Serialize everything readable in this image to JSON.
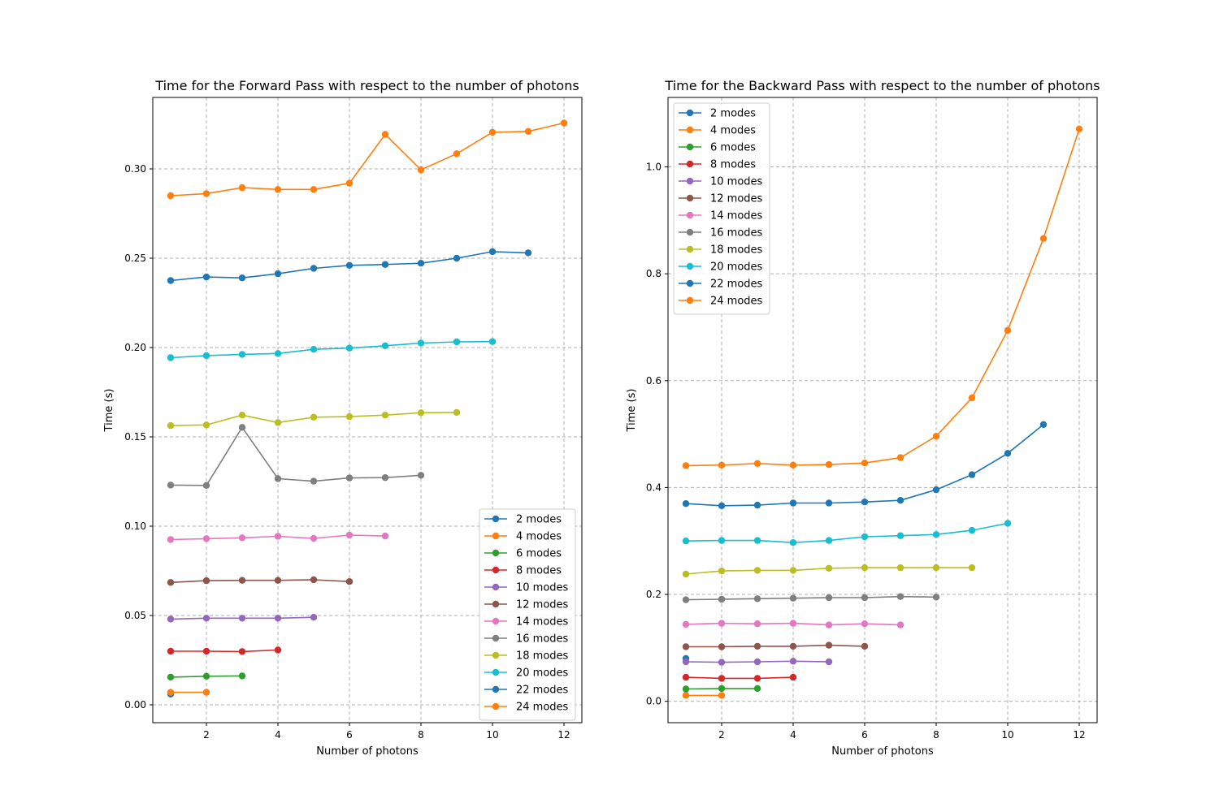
{
  "chart_data": [
    {
      "type": "line",
      "title": "Time for the Forward Pass with respect to the number of photons",
      "xlabel": "Number of photons",
      "ylabel": "Time (s)",
      "xlim": [
        0.5,
        12.5
      ],
      "ylim": [
        -0.01,
        0.34
      ],
      "xticks": [
        2,
        4,
        6,
        8,
        10,
        12
      ],
      "yticks": [
        0.0,
        0.05,
        0.1,
        0.15,
        0.2,
        0.25,
        0.3
      ],
      "ytick_labels": [
        "0.00",
        "0.05",
        "0.10",
        "0.15",
        "0.20",
        "0.25",
        "0.30"
      ],
      "grid": true,
      "legend_position": "lower-right",
      "series": [
        {
          "name": "2 modes",
          "color": "#1f77b4",
          "x": [
            1
          ],
          "y": [
            0.006
          ]
        },
        {
          "name": "4 modes",
          "color": "#ff7f0e",
          "x": [
            1,
            2
          ],
          "y": [
            0.007,
            0.007
          ]
        },
        {
          "name": "6 modes",
          "color": "#2ca02c",
          "x": [
            1,
            2,
            3
          ],
          "y": [
            0.0155,
            0.016,
            0.0162
          ]
        },
        {
          "name": "8 modes",
          "color": "#d62728",
          "x": [
            1,
            2,
            3,
            4
          ],
          "y": [
            0.03,
            0.03,
            0.0298,
            0.0307
          ]
        },
        {
          "name": "10 modes",
          "color": "#9467bd",
          "x": [
            1,
            2,
            3,
            4,
            5
          ],
          "y": [
            0.048,
            0.0485,
            0.0485,
            0.0485,
            0.049
          ]
        },
        {
          "name": "12 modes",
          "color": "#8c564b",
          "x": [
            1,
            2,
            3,
            4,
            5,
            6
          ],
          "y": [
            0.0685,
            0.0695,
            0.0697,
            0.0697,
            0.07,
            0.069
          ]
        },
        {
          "name": "14 modes",
          "color": "#e377c2",
          "x": [
            1,
            2,
            3,
            4,
            5,
            6,
            7
          ],
          "y": [
            0.0925,
            0.093,
            0.0935,
            0.0943,
            0.0932,
            0.095,
            0.0945
          ]
        },
        {
          "name": "16 modes",
          "color": "#7f7f7f",
          "x": [
            1,
            2,
            3,
            4,
            5,
            6,
            7,
            8
          ],
          "y": [
            0.123,
            0.1228,
            0.1553,
            0.1266,
            0.1252,
            0.127,
            0.1272,
            0.1285
          ]
        },
        {
          "name": "18 modes",
          "color": "#bcbd22",
          "x": [
            1,
            2,
            3,
            4,
            5,
            6,
            7,
            8,
            9
          ],
          "y": [
            0.1563,
            0.1567,
            0.1622,
            0.158,
            0.161,
            0.1613,
            0.1622,
            0.1635,
            0.1637
          ]
        },
        {
          "name": "20 modes",
          "color": "#17becf",
          "x": [
            1,
            2,
            3,
            4,
            5,
            6,
            7,
            8,
            9,
            10
          ],
          "y": [
            0.1943,
            0.1955,
            0.1962,
            0.1967,
            0.199,
            0.1997,
            0.201,
            0.2025,
            0.2032,
            0.2033
          ]
        },
        {
          "name": "22 modes",
          "color": "#1f77b4",
          "x": [
            1,
            2,
            3,
            4,
            5,
            6,
            7,
            8,
            9,
            10,
            11
          ],
          "y": [
            0.2375,
            0.2395,
            0.239,
            0.2413,
            0.2443,
            0.246,
            0.2465,
            0.2472,
            0.25,
            0.2537,
            0.253
          ]
        },
        {
          "name": "24 modes",
          "color": "#ff7f0e",
          "x": [
            1,
            2,
            3,
            4,
            5,
            6,
            7,
            8,
            9,
            10,
            11,
            12
          ],
          "y": [
            0.285,
            0.2862,
            0.2895,
            0.2885,
            0.2885,
            0.292,
            0.3193,
            0.2995,
            0.3085,
            0.3205,
            0.321,
            0.3257
          ]
        }
      ]
    },
    {
      "type": "line",
      "title": "Time for the Backward Pass with respect to the number of photons",
      "xlabel": "Number of photons",
      "ylabel": "Time (s)",
      "xlim": [
        0.5,
        12.5
      ],
      "ylim": [
        -0.04,
        1.13
      ],
      "xticks": [
        2,
        4,
        6,
        8,
        10,
        12
      ],
      "yticks": [
        0.0,
        0.2,
        0.4,
        0.6,
        0.8,
        1.0
      ],
      "ytick_labels": [
        "0.0",
        "0.2",
        "0.4",
        "0.6",
        "0.8",
        "1.0"
      ],
      "grid": true,
      "legend_position": "upper-left",
      "series": [
        {
          "name": "2 modes",
          "color": "#1f77b4",
          "x": [
            1
          ],
          "y": [
            0.08
          ]
        },
        {
          "name": "4 modes",
          "color": "#ff7f0e",
          "x": [
            1,
            2
          ],
          "y": [
            0.011,
            0.011
          ]
        },
        {
          "name": "6 modes",
          "color": "#2ca02c",
          "x": [
            1,
            2,
            3
          ],
          "y": [
            0.023,
            0.024,
            0.024
          ]
        },
        {
          "name": "8 modes",
          "color": "#d62728",
          "x": [
            1,
            2,
            3,
            4
          ],
          "y": [
            0.045,
            0.043,
            0.043,
            0.045
          ]
        },
        {
          "name": "10 modes",
          "color": "#9467bd",
          "x": [
            1,
            2,
            3,
            4,
            5
          ],
          "y": [
            0.074,
            0.073,
            0.074,
            0.075,
            0.074
          ]
        },
        {
          "name": "12 modes",
          "color": "#8c564b",
          "x": [
            1,
            2,
            3,
            4,
            5,
            6
          ],
          "y": [
            0.102,
            0.102,
            0.103,
            0.103,
            0.105,
            0.103
          ]
        },
        {
          "name": "14 modes",
          "color": "#e377c2",
          "x": [
            1,
            2,
            3,
            4,
            5,
            6,
            7
          ],
          "y": [
            0.144,
            0.146,
            0.145,
            0.146,
            0.143,
            0.145,
            0.143
          ]
        },
        {
          "name": "16 modes",
          "color": "#7f7f7f",
          "x": [
            1,
            2,
            3,
            4,
            5,
            6,
            7,
            8
          ],
          "y": [
            0.19,
            0.191,
            0.192,
            0.193,
            0.194,
            0.194,
            0.196,
            0.195
          ]
        },
        {
          "name": "18 modes",
          "color": "#bcbd22",
          "x": [
            1,
            2,
            3,
            4,
            5,
            6,
            7,
            8,
            9
          ],
          "y": [
            0.238,
            0.244,
            0.245,
            0.245,
            0.249,
            0.25,
            0.25,
            0.25,
            0.25
          ]
        },
        {
          "name": "20 modes",
          "color": "#17becf",
          "x": [
            1,
            2,
            3,
            4,
            5,
            6,
            7,
            8,
            9,
            10
          ],
          "y": [
            0.3,
            0.301,
            0.301,
            0.297,
            0.301,
            0.308,
            0.31,
            0.312,
            0.32,
            0.333
          ]
        },
        {
          "name": "22 modes",
          "color": "#1f77b4",
          "x": [
            1,
            2,
            3,
            4,
            5,
            6,
            7,
            8,
            9,
            10,
            11
          ],
          "y": [
            0.37,
            0.366,
            0.367,
            0.371,
            0.371,
            0.373,
            0.376,
            0.396,
            0.424,
            0.464,
            0.518
          ]
        },
        {
          "name": "24 modes",
          "color": "#ff7f0e",
          "x": [
            1,
            2,
            3,
            4,
            5,
            6,
            7,
            8,
            9,
            10,
            11,
            12
          ],
          "y": [
            0.441,
            0.442,
            0.445,
            0.442,
            0.443,
            0.446,
            0.456,
            0.496,
            0.568,
            0.694,
            0.866,
            1.071
          ]
        }
      ]
    }
  ]
}
